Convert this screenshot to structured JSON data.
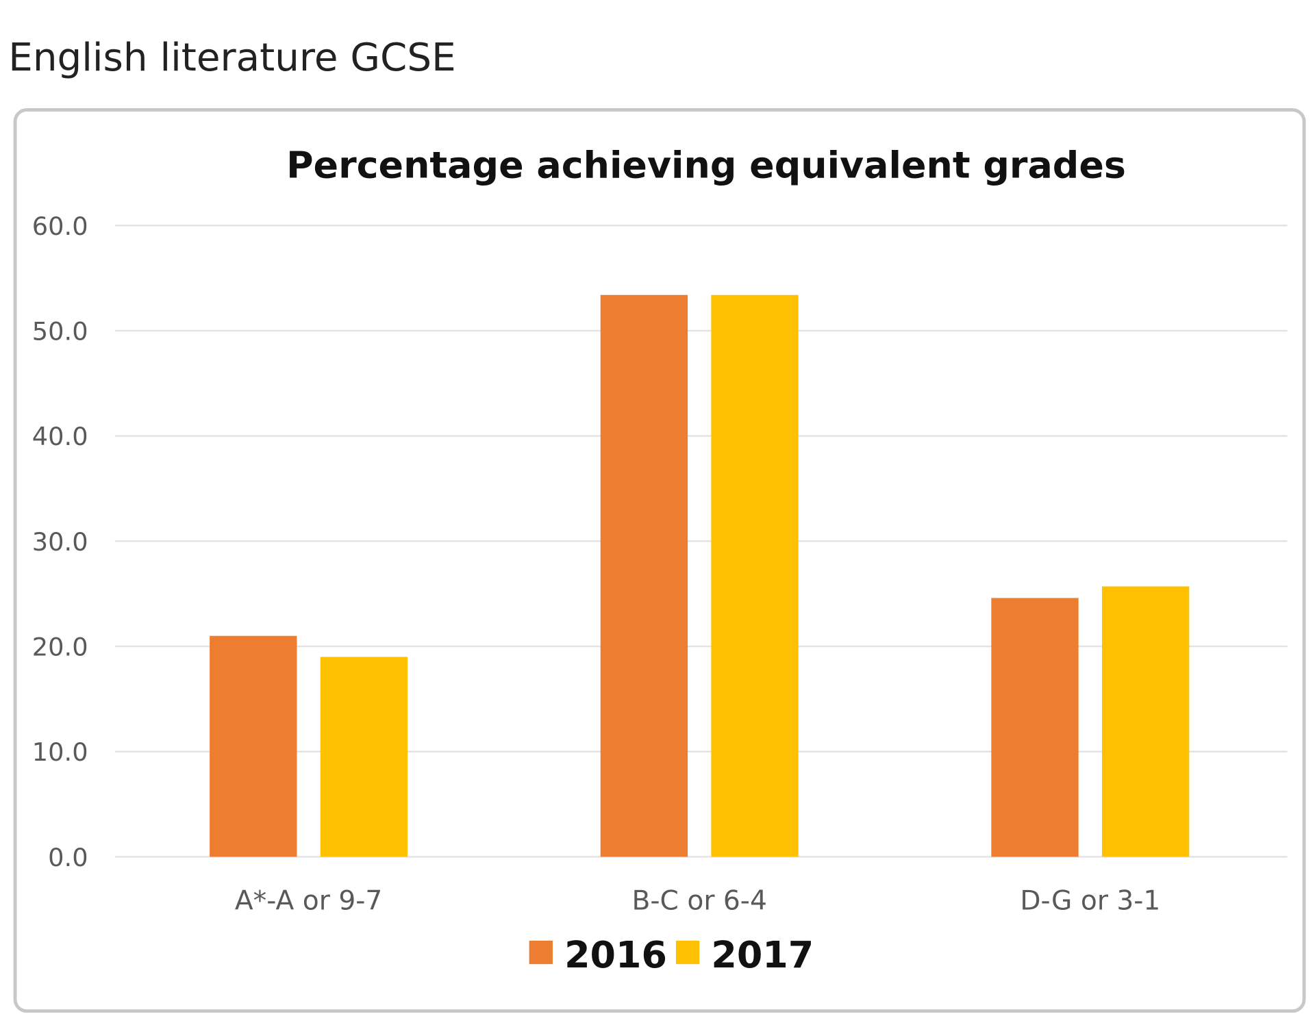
{
  "heading": "English literature GCSE",
  "chart_data": {
    "type": "bar",
    "title": "Percentage achieving equivalent grades",
    "xlabel": "",
    "ylabel": "",
    "ylim": [
      0,
      60
    ],
    "yticks": [
      "0.0",
      "10.0",
      "20.0",
      "30.0",
      "40.0",
      "50.0",
      "60.0"
    ],
    "grid": true,
    "legend_position": "bottom",
    "categories": [
      "A*-A or 9-7",
      "B-C or 6-4",
      "D-G or 3-1"
    ],
    "series": [
      {
        "name": "2016",
        "color": "#ED7D31",
        "values": [
          21.0,
          53.4,
          24.6
        ]
      },
      {
        "name": "2017",
        "color": "#FFC000",
        "values": [
          19.0,
          53.4,
          25.7
        ]
      }
    ]
  }
}
